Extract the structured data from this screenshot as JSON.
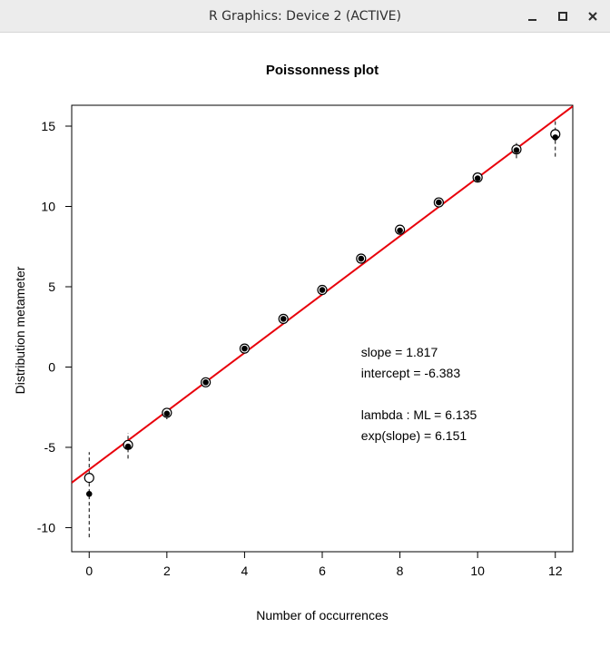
{
  "window": {
    "title": "R Graphics: Device 2 (ACTIVE)",
    "buttons": {
      "minimize": "minimize-icon",
      "maximize": "maximize-icon",
      "close": "close-icon"
    }
  },
  "chart_data": {
    "type": "scatter",
    "title": "Poissonness plot",
    "xlabel": "Number of occurrences",
    "ylabel": "Distribution metameter",
    "xlim": [
      -0.45,
      12.45
    ],
    "ylim": [
      -11.5,
      16.3
    ],
    "xticks": [
      0,
      2,
      4,
      6,
      8,
      10,
      12
    ],
    "yticks": [
      -10,
      -5,
      0,
      5,
      10,
      15
    ],
    "xtick_labels": [
      "0",
      "2",
      "4",
      "6",
      "8",
      "10",
      "12"
    ],
    "ytick_labels": [
      "-10",
      "-5",
      "0",
      "5",
      "10",
      "15"
    ],
    "grid": false,
    "series": [
      {
        "kind": "open-circles",
        "x": [
          0,
          1,
          2,
          3,
          4,
          5,
          6,
          7,
          8,
          9,
          10,
          11,
          12
        ],
        "y": [
          -6.9,
          -4.85,
          -2.85,
          -0.95,
          1.15,
          3.0,
          4.8,
          6.75,
          8.55,
          10.25,
          11.8,
          13.55,
          14.5
        ]
      },
      {
        "kind": "filled-points",
        "x": [
          0,
          1,
          2,
          3,
          4,
          5,
          6,
          7,
          8,
          9,
          10,
          11,
          12
        ],
        "y": [
          -7.9,
          -4.95,
          -2.9,
          -0.95,
          1.15,
          3.0,
          4.8,
          6.75,
          8.5,
          10.25,
          11.75,
          13.5,
          14.3
        ]
      }
    ],
    "intervals": {
      "x": [
        0,
        1,
        2,
        3,
        4,
        5,
        6,
        7,
        8,
        9,
        10,
        11,
        12
      ],
      "lower": [
        -10.6,
        -5.7,
        -3.25,
        -1.2,
        0.95,
        2.85,
        4.7,
        6.65,
        8.4,
        10.1,
        11.5,
        13.0,
        13.1
      ],
      "upper": [
        -5.3,
        -4.1,
        -2.55,
        -0.75,
        1.35,
        3.15,
        4.95,
        6.9,
        8.7,
        10.4,
        12.0,
        13.95,
        15.4
      ]
    },
    "fit_line": {
      "slope": 1.817,
      "intercept": -6.383,
      "color": "#e8000b"
    },
    "annotations": [
      "slope = 1.817",
      "intercept = -6.383",
      "",
      "lambda : ML = 6.135",
      "exp(slope) = 6.151"
    ]
  }
}
